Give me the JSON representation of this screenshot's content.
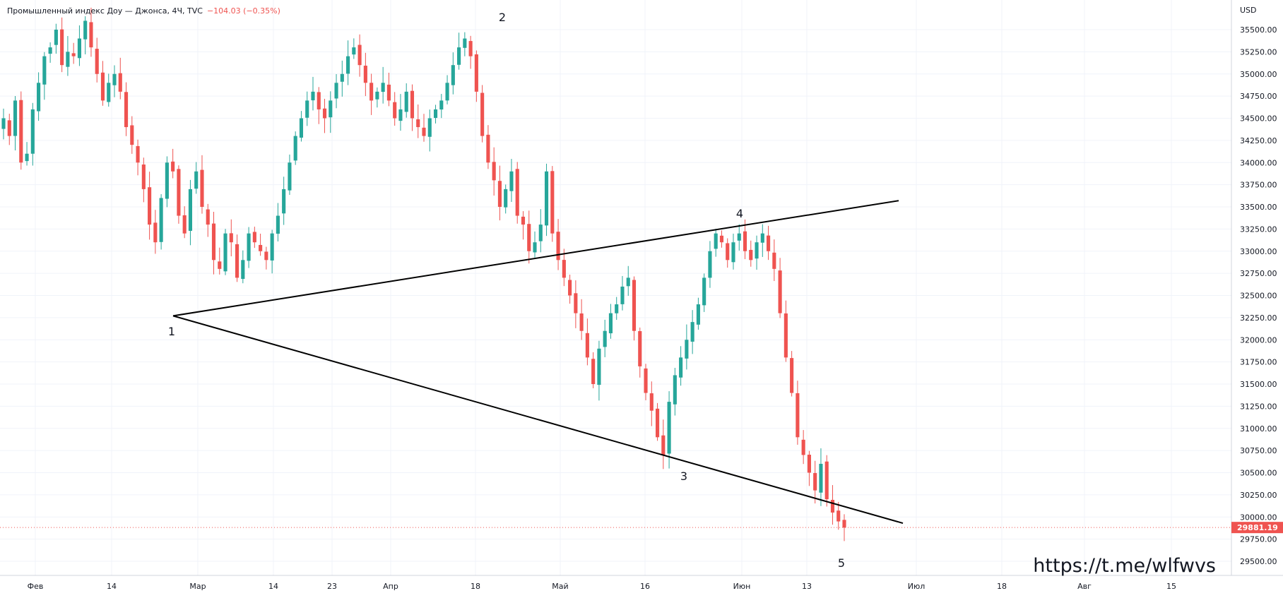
{
  "header": {
    "title": "Промышленный индекс Доу — Джонса, 4Ч, TVC",
    "change": "−104.03 (−0.35%)"
  },
  "watermark": "https://t.me/wlfwvs",
  "colors": {
    "up": "#26a69a",
    "down": "#ef5350",
    "grid": "#f0f3fa",
    "trendline": "#000000",
    "price_tag_bg": "#ef5350"
  },
  "chart_data": {
    "type": "candlestick",
    "currency_label": "USD",
    "current_price": "29881.19",
    "ylim": [
      29400,
      35750
    ],
    "y_ticks": [
      "29500.00",
      "29750.00",
      "30000.00",
      "30250.00",
      "30500.00",
      "30750.00",
      "31000.00",
      "31250.00",
      "31500.00",
      "31750.00",
      "32000.00",
      "32250.00",
      "32500.00",
      "32750.00",
      "33000.00",
      "33250.00",
      "33500.00",
      "33750.00",
      "34000.00",
      "34250.00",
      "34500.00",
      "34750.00",
      "35000.00",
      "35250.00",
      "35500.00"
    ],
    "x_ticks": [
      "Фев",
      "14",
      "Мар",
      "14",
      "23",
      "Апр",
      "18",
      "Май",
      "16",
      "Июн",
      "13",
      "Июл",
      "18",
      "Авг",
      "15"
    ],
    "wave_labels": [
      {
        "label": "1",
        "value": 32270
      },
      {
        "label": "2",
        "value": 35500
      },
      {
        "label": "3",
        "value": 30620
      },
      {
        "label": "4",
        "value": 33270
      },
      {
        "label": "5",
        "value": 29650
      }
    ],
    "trendlines": [
      {
        "name": "upper",
        "from": 32270,
        "to": 33570
      },
      {
        "name": "lower",
        "from": 32270,
        "to": 29930
      }
    ],
    "series": [
      {
        "name": "",
        "ohlc_path": [
          34500,
          34300,
          34700,
          34000,
          34100,
          34600,
          34900,
          35200,
          35300,
          35500,
          35100,
          35250,
          35200,
          35400,
          35600,
          35300,
          35000,
          34700,
          34900,
          35000,
          34800,
          34400,
          34200,
          34000,
          33700,
          33300,
          33100,
          33600,
          34000,
          33900,
          33400,
          33200,
          33700,
          33900,
          33500,
          33300,
          32900,
          32800,
          33200,
          33100,
          32700,
          32900,
          33200,
          33100,
          33000,
          32900,
          33200,
          33400,
          33700,
          34000,
          34300,
          34500,
          34700,
          34800,
          34600,
          34500,
          34700,
          34900,
          35000,
          35200,
          35300,
          35100,
          34900,
          34700,
          34800,
          34900,
          34700,
          34500,
          34600,
          34800,
          34500,
          34400,
          34300,
          34500,
          34600,
          34700,
          34900,
          35100,
          35300,
          35400,
          35200,
          34800,
          34300,
          34000,
          33800,
          33500,
          33700,
          33900,
          33400,
          33300,
          33000,
          33100,
          33300,
          33900,
          33200,
          32900,
          32700,
          32500,
          32300,
          32100,
          31800,
          31500,
          31900,
          32100,
          32300,
          32400,
          32600,
          32700,
          32100,
          31700,
          31400,
          31200,
          30900,
          30700,
          31300,
          31600,
          31800,
          32000,
          32200,
          32400,
          32700,
          33000,
          33200,
          33100,
          32900,
          33100,
          33200,
          33000,
          32900,
          33100,
          33200,
          33000,
          32800,
          32300,
          31800,
          31400,
          30900,
          30700,
          30500,
          30300,
          30600,
          30200,
          30050,
          29950,
          29880
        ]
      }
    ]
  }
}
